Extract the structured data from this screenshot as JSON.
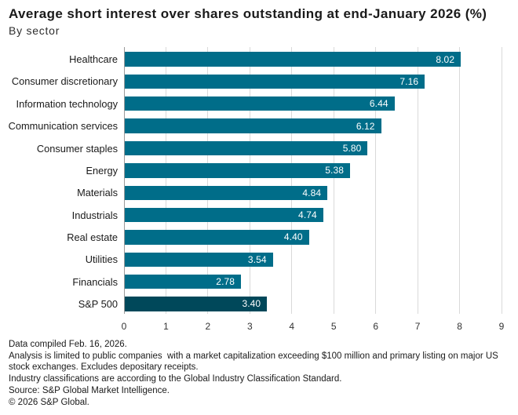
{
  "header": {
    "title": "Average short interest over shares outstanding at end-January 2026 (%)",
    "subtitle": "By sector"
  },
  "chart_data": {
    "type": "bar",
    "orientation": "horizontal",
    "title": "Average short interest over shares outstanding at end-January 2026 (%)",
    "subtitle": "By sector",
    "categories": [
      "Healthcare",
      "Consumer discretionary",
      "Information technology",
      "Communication services",
      "Consumer staples",
      "Energy",
      "Materials",
      "Industrials",
      "Real estate",
      "Utilities",
      "Financials",
      "S&P 500"
    ],
    "values": [
      8.02,
      7.16,
      6.44,
      6.12,
      5.8,
      5.38,
      4.84,
      4.74,
      4.4,
      3.54,
      2.78,
      3.4
    ],
    "value_labels": [
      "8.02",
      "7.16",
      "6.44",
      "6.12",
      "5.80",
      "5.38",
      "4.84",
      "4.74",
      "4.40",
      "3.54",
      "2.78",
      "3.40"
    ],
    "xlim": [
      0,
      9
    ],
    "xticks": [
      0,
      1,
      2,
      3,
      4,
      5,
      6,
      7,
      8,
      9
    ],
    "grid": "vertical-on",
    "legend": "none",
    "bar_color": "#006d89",
    "highlight_category": "S&P 500",
    "highlight_color": "#00485a",
    "value_label_color": "#ffffff"
  },
  "footer": {
    "lines": [
      "Data compiled Feb. 16, 2026.",
      "Analysis is limited to public companies  with a market capitalization exceeding $100 million and primary listing on major US",
      "stock exchanges. Excludes depositary receipts.",
      "Industry classifications are according to the Global Industry Classification Standard.",
      "Source: S&P Global Market Intelligence.",
      "© 2026 S&P Global."
    ]
  }
}
